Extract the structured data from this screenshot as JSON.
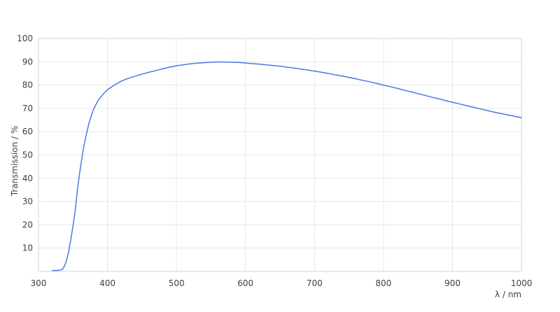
{
  "page": {
    "background_color": "#ffffff"
  },
  "chart_data": {
    "type": "line",
    "title": "",
    "xlabel": "λ / nm",
    "ylabel": "Transmission / %",
    "xlim": [
      300,
      1000
    ],
    "ylim": [
      0,
      100
    ],
    "x_ticks": [
      300,
      400,
      500,
      600,
      700,
      800,
      900,
      1000
    ],
    "y_ticks": [
      10,
      20,
      30,
      40,
      50,
      60,
      70,
      80,
      90,
      100
    ],
    "grid": true,
    "legend_position": "none",
    "line_color": "#4a79e0",
    "grid_color": "#e7e7e7",
    "border_color": "#d4d4d4",
    "text_color": "#404040",
    "series": [
      {
        "name": "Transmission",
        "x": [
          320,
          325,
          330,
          335,
          338,
          341,
          344,
          347,
          350,
          353,
          356,
          359,
          362,
          365,
          368,
          371,
          374,
          377,
          380,
          383,
          386,
          390,
          395,
          400,
          405,
          410,
          420,
          430,
          440,
          450,
          460,
          470,
          480,
          490,
          500,
          510,
          520,
          530,
          540,
          550,
          560,
          570,
          580,
          590,
          600,
          610,
          620,
          630,
          640,
          650,
          660,
          670,
          680,
          690,
          700,
          710,
          720,
          730,
          740,
          750,
          760,
          770,
          780,
          790,
          800,
          810,
          820,
          830,
          840,
          850,
          860,
          870,
          880,
          890,
          900,
          910,
          920,
          930,
          940,
          950,
          960,
          970,
          980,
          990,
          1000
        ],
        "y": [
          0.4,
          0.4,
          0.5,
          1.0,
          2.5,
          5,
          9,
          14,
          19.5,
          25.5,
          34,
          41,
          47,
          52.5,
          57,
          61,
          64.5,
          67.3,
          69.7,
          71.5,
          73.2,
          74.8,
          76.5,
          78,
          79,
          80,
          81.7,
          82.9,
          83.8,
          84.7,
          85.5,
          86.2,
          87,
          87.7,
          88.3,
          88.7,
          89.1,
          89.4,
          89.6,
          89.8,
          89.9,
          89.9,
          89.8,
          89.7,
          89.5,
          89.2,
          89,
          88.7,
          88.4,
          88.1,
          87.7,
          87.3,
          86.9,
          86.5,
          86,
          85.5,
          85,
          84.4,
          83.9,
          83.3,
          82.7,
          82,
          81.4,
          80.7,
          80,
          79.3,
          78.6,
          77.8,
          77.1,
          76.3,
          75.6,
          74.8,
          74.1,
          73.3,
          72.6,
          71.9,
          71.2,
          70.5,
          69.8,
          69.1,
          68.4,
          67.8,
          67.2,
          66.6,
          66
        ]
      }
    ]
  }
}
